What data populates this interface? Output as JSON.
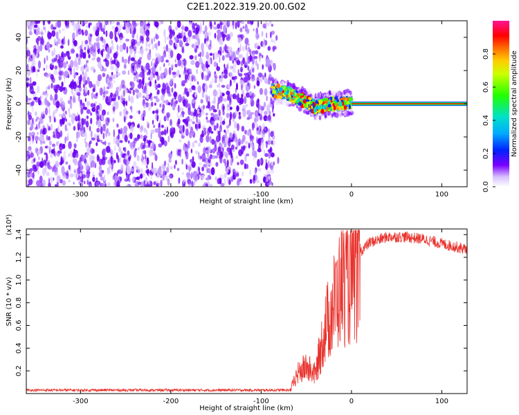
{
  "title": "C2E1.2022.319.20.00.G02",
  "chart_data": [
    {
      "type": "heatmap",
      "xlabel": "Height of straight line (km)",
      "ylabel": "Frequency (Hz)",
      "xlim": [
        -360,
        128
      ],
      "ylim": [
        -50,
        50
      ],
      "xticks": [
        -300,
        -200,
        -100,
        0,
        100
      ],
      "yticks": [
        -40,
        -20,
        0,
        20,
        40
      ],
      "noise_region_x": [
        -360,
        -85
      ],
      "signal_track": [
        {
          "x": -88,
          "y": 8
        },
        {
          "x": -75,
          "y": 7
        },
        {
          "x": -62,
          "y": 4
        },
        {
          "x": -50,
          "y": 1
        },
        {
          "x": -40,
          "y": -2
        },
        {
          "x": -30,
          "y": -1
        },
        {
          "x": -20,
          "y": 0
        },
        {
          "x": -10,
          "y": 0
        },
        {
          "x": 0,
          "y": 1
        }
      ],
      "carrier_line": {
        "x_start": 0,
        "x_end": 128,
        "y": 0
      },
      "colorbar": {
        "label": "Normalized spectral amplitude",
        "range": [
          0,
          1
        ],
        "ticks": [
          "0.0",
          "0.2",
          "0.4",
          "0.6",
          "0.8"
        ]
      }
    },
    {
      "type": "line",
      "xlabel": "Height of straight line (km)",
      "ylabel": "SNR (10 * v/v)",
      "y_multiplier": "(x10⁴)",
      "xlim": [
        -360,
        128
      ],
      "ylim": [
        0,
        1.45
      ],
      "xticks": [
        -300,
        -200,
        -100,
        0,
        100
      ],
      "yticks": [
        "0.2",
        "0.4",
        "0.6",
        "0.8",
        "1.0",
        "1.2",
        "1.4"
      ],
      "series": [
        {
          "color": "#e8302a",
          "points": [
            {
              "x": -360,
              "y": 0.03
            },
            {
              "x": -100,
              "y": 0.03
            },
            {
              "x": -68,
              "y": 0.03
            },
            {
              "x": -60,
              "y": 0.2
            },
            {
              "x": -50,
              "y": 0.28
            },
            {
              "x": -40,
              "y": 0.2
            },
            {
              "x": -30,
              "y": 0.65
            },
            {
              "x": -20,
              "y": 0.92
            },
            {
              "x": -10,
              "y": 1.15
            },
            {
              "x": 0,
              "y": 1.15
            },
            {
              "x": 10,
              "y": 1.25
            },
            {
              "x": 20,
              "y": 1.33
            },
            {
              "x": 40,
              "y": 1.38
            },
            {
              "x": 60,
              "y": 1.38
            },
            {
              "x": 80,
              "y": 1.36
            },
            {
              "x": 100,
              "y": 1.32
            },
            {
              "x": 128,
              "y": 1.27
            }
          ]
        }
      ]
    }
  ],
  "palette": {
    "noise": [
      "#6a00f0",
      "#8a33ff",
      "#b98cff",
      "#dcc6ff"
    ],
    "spectrum": [
      "#ffffff",
      "#ece0ff",
      "#7a00ff",
      "#0033ff",
      "#00aaff",
      "#00e0c0",
      "#33ff00",
      "#bbff00",
      "#ffd000",
      "#ff7000",
      "#ff0000",
      "#ff0088"
    ],
    "line": "#e8302a"
  }
}
